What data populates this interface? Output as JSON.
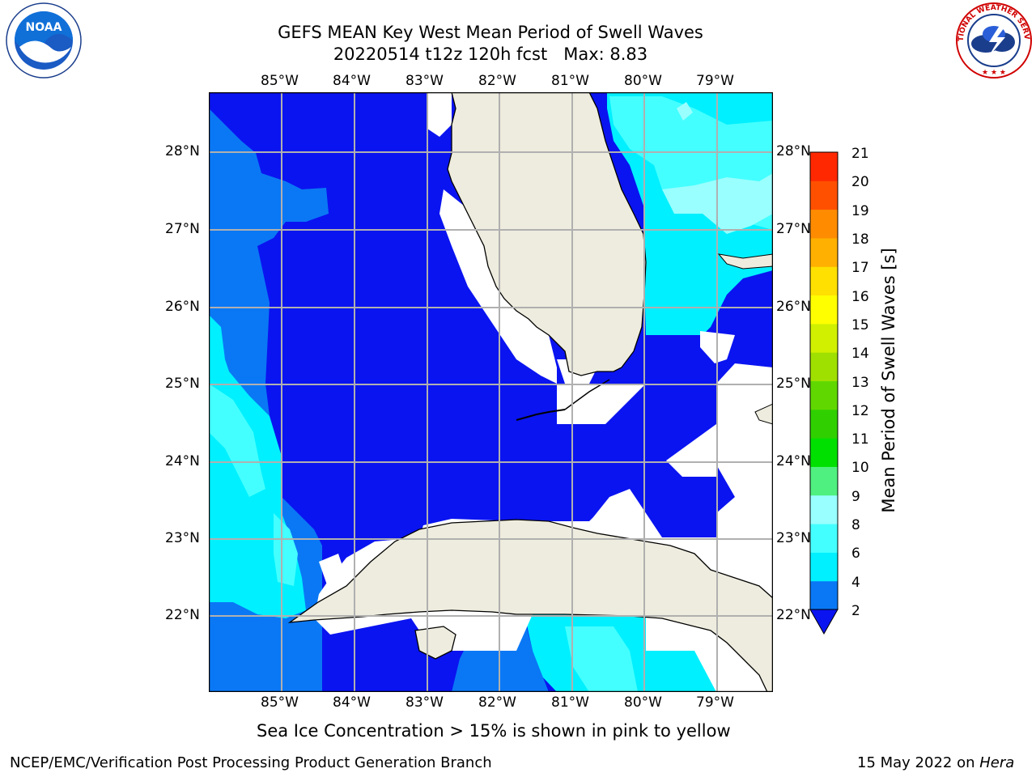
{
  "header": {
    "title_line1": "GEFS MEAN Key West Mean Period of Swell Waves",
    "title_line2": "20220514 t12z 120h fcst   Max: 8.83"
  },
  "logos": {
    "noaa_text": "NOAA",
    "nws_text": "NATIONAL WEATHER SERVICE"
  },
  "map": {
    "lon_labels": [
      "85°W",
      "84°W",
      "83°W",
      "82°W",
      "81°W",
      "80°W",
      "79°W"
    ],
    "lat_labels": [
      "28°N",
      "27°N",
      "26°N",
      "25°N",
      "24°N",
      "23°N",
      "22°N"
    ],
    "colors": {
      "deep_blue": "#0a14f0",
      "mid_blue": "#0a78f5",
      "cyan": "#00f0ff",
      "light_cyan": "#44ffff",
      "pale_cyan": "#99ffff",
      "land": "#eeecde",
      "grid": "#b0b0b0"
    }
  },
  "colorbar": {
    "label": "Mean Period of Swell Waves [s]",
    "tick_labels": [
      "2",
      "4",
      "6",
      "8",
      "9",
      "10",
      "11",
      "12",
      "13",
      "14",
      "15",
      "16",
      "17",
      "18",
      "19",
      "20",
      "21"
    ],
    "colors": [
      "#0a78f5",
      "#00f0ff",
      "#44ffff",
      "#99ffff",
      "#50f080",
      "#00e000",
      "#30d000",
      "#60d800",
      "#a0e000",
      "#d0f000",
      "#ffff00",
      "#ffe000",
      "#ffb000",
      "#ff8c00",
      "#ff5000",
      "#ff2800",
      "#ff0000"
    ],
    "under_color": "#0a14f0"
  },
  "note": "Sea Ice Concentration > 15% is shown in pink to yellow",
  "footer": {
    "left": "NCEP/EMC/Verification Post Processing Product Generation Branch",
    "date": "15 May 2022 on ",
    "host": "Hera"
  }
}
